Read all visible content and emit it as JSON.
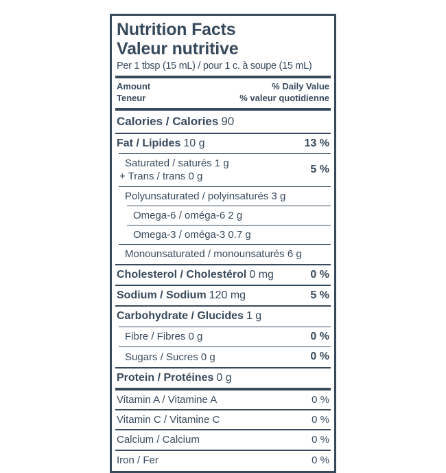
{
  "label": {
    "colors": {
      "ink": "#374a5c",
      "background": "#ffffff"
    },
    "title_en": "Nutrition Facts",
    "title_fr": "Valeur nutritive",
    "serving": "Per 1 tbsp (15 mL) / pour 1 c. à soupe (15 mL)",
    "columns": {
      "amount_en": "Amount",
      "amount_fr": "Teneur",
      "daily_value_en": "% Daily Value",
      "daily_value_fr": "% valeur quotidienne"
    },
    "rows": [
      {
        "name": "calories",
        "bold": "Calories / Calories",
        "value": "90"
      },
      {
        "name": "fat",
        "bold": "Fat / Lipides",
        "value": "10 g",
        "dv": "13 %"
      },
      {
        "name": "saturated-trans",
        "line1": "Saturated / saturés 1 g",
        "line2": "+ Trans / trans 0 g",
        "dv": "5 %"
      },
      {
        "name": "polyunsaturated",
        "text": "Polyunsaturated / polyinsaturés 3 g"
      },
      {
        "name": "omega-6",
        "text": "Omega-6 / oméga-6 2 g"
      },
      {
        "name": "omega-3",
        "text": "Omega-3 / oméga-3 0.7 g"
      },
      {
        "name": "monounsaturated",
        "text": "Monounsaturated / monounsaturés 6 g"
      },
      {
        "name": "cholesterol",
        "bold": "Cholesterol / Cholestérol",
        "value": "0 mg",
        "dv": "0 %"
      },
      {
        "name": "sodium",
        "bold": "Sodium / Sodium",
        "value": "120 mg",
        "dv": "5 %"
      },
      {
        "name": "carbohydrate",
        "bold": "Carbohydrate / Glucides",
        "value": "1 g"
      },
      {
        "name": "fibre",
        "text": "Fibre / Fibres 0 g",
        "dv": "0 %"
      },
      {
        "name": "sugars",
        "text": "Sugars / Sucres 0 g",
        "dv": "0 %"
      },
      {
        "name": "protein",
        "bold": "Protein / Protéines",
        "value": "0 g"
      },
      {
        "name": "vitamin-a",
        "text": "Vitamin A / Vitamine A",
        "dv": "0 %"
      },
      {
        "name": "vitamin-c",
        "text": "Vitamin C / Vitamine C",
        "dv": "0 %"
      },
      {
        "name": "calcium",
        "text": "Calcium / Calcium",
        "dv": "0 %"
      },
      {
        "name": "iron",
        "text": "Iron / Fer",
        "dv": "0 %"
      }
    ]
  }
}
